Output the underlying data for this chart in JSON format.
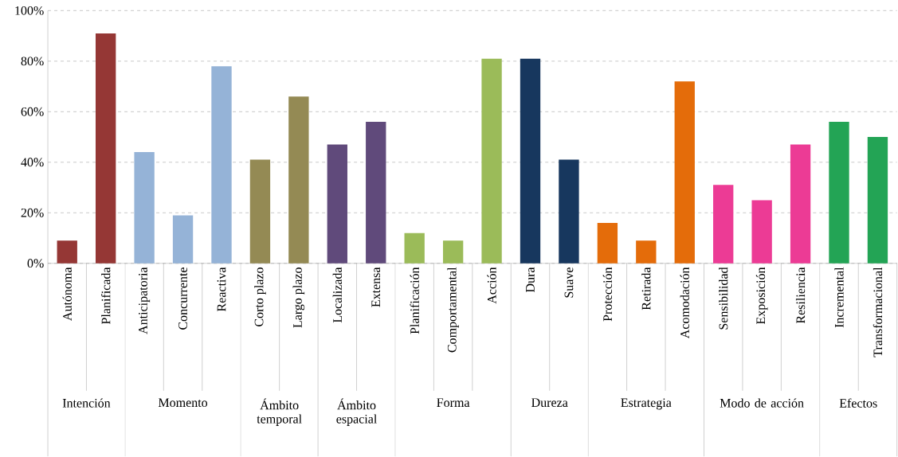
{
  "chart_data": {
    "type": "bar",
    "categories": [
      "Autónoma",
      "Planificada",
      "Anticipatoria",
      "Concurrente",
      "Reactiva",
      "Corto plazo",
      "Largo plazo",
      "Localizada",
      "Extensa",
      "Planificación",
      "Comportamental",
      "Acción",
      "Dura",
      "Suave",
      "Protección",
      "Retirada",
      "Acomodación",
      "Sensibilidad",
      "Exposición",
      "Resiliencia",
      "Incremental",
      "Transformacional"
    ],
    "values": [
      9,
      91,
      44,
      19,
      78,
      41,
      66,
      47,
      56,
      12,
      9,
      81,
      81,
      41,
      16,
      9,
      72,
      31,
      25,
      47,
      56,
      50
    ],
    "colors": [
      "#953735",
      "#953735",
      "#95b3d7",
      "#95b3d7",
      "#95b3d7",
      "#948a54",
      "#948a54",
      "#604a7b",
      "#604a7b",
      "#9bbb59",
      "#9bbb59",
      "#9bbb59",
      "#17375e",
      "#17375e",
      "#e46c0a",
      "#e46c0a",
      "#e46c0a",
      "#ec3b95",
      "#ec3b95",
      "#ec3b95",
      "#23a455",
      "#23a455"
    ],
    "ylim": [
      0,
      100
    ],
    "yticks": [
      {
        "value": 0,
        "label": "0%"
      },
      {
        "value": 20,
        "label": "20%"
      },
      {
        "value": 40,
        "label": "40%"
      },
      {
        "value": 60,
        "label": "60%"
      },
      {
        "value": 80,
        "label": "80%"
      },
      {
        "value": 100,
        "label": "100%"
      }
    ],
    "grid": "y",
    "annotations": [
      "Intención",
      "Momento",
      "Ámbito temporal",
      "Ámbito espacial",
      "Forma",
      "Dureza",
      "Estrategia",
      "Modo de acción",
      "Efectos"
    ]
  }
}
